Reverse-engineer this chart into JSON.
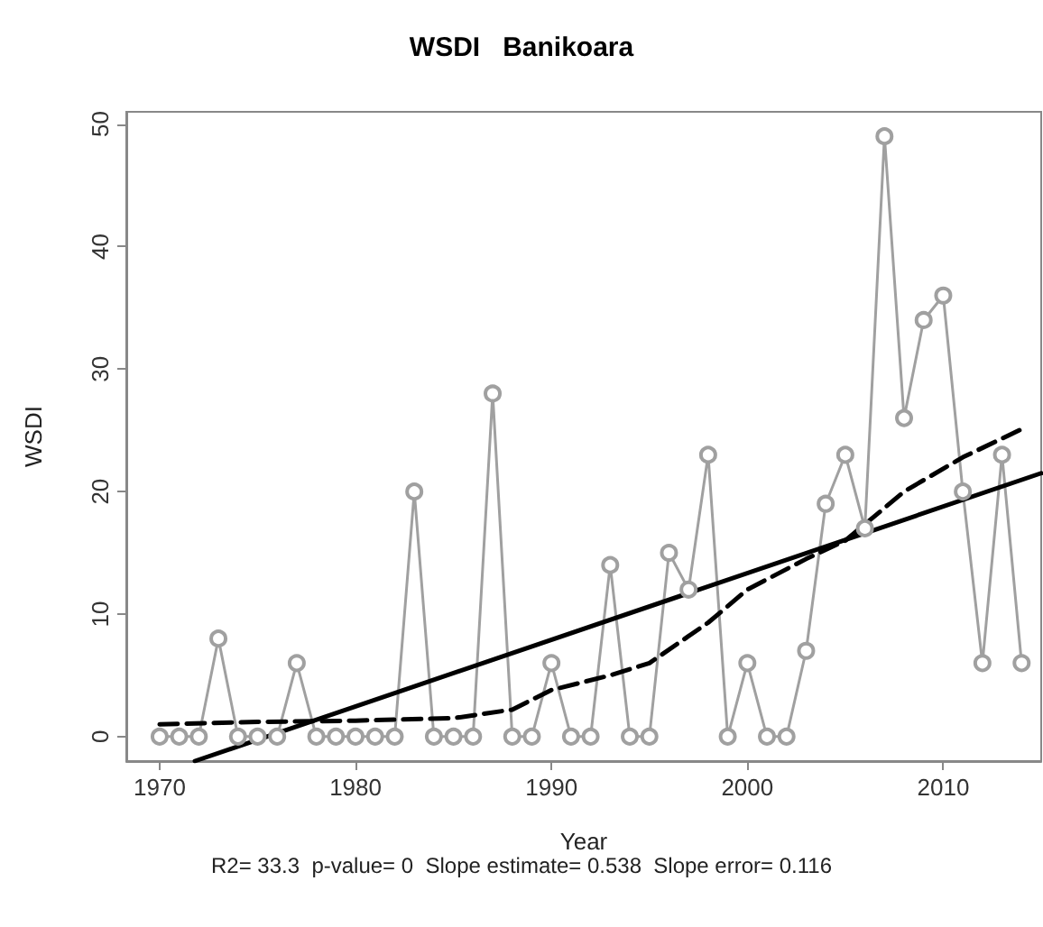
{
  "chart_data": {
    "type": "line",
    "title": "WSDI   Banikoara",
    "xlabel": "Year",
    "ylabel": "WSDI",
    "annotations": [
      "R2= 33.3  p-value= 0  Slope estimate= 0.538  Slope error= 0.116"
    ],
    "x": [
      1970,
      1971,
      1972,
      1973,
      1974,
      1975,
      1976,
      1977,
      1978,
      1979,
      1980,
      1981,
      1982,
      1983,
      1984,
      1985,
      1986,
      1987,
      1988,
      1989,
      1990,
      1991,
      1992,
      1993,
      1994,
      1995,
      1996,
      1997,
      1998,
      1999,
      2000,
      2001,
      2002,
      2003,
      2004,
      2005,
      2006,
      2007,
      2008,
      2009,
      2010,
      2011,
      2012,
      2013,
      2014
    ],
    "series": [
      {
        "color": "#a0a0a0",
        "marker": "circle",
        "line_style": "solid",
        "values": [
          0,
          0,
          0,
          8,
          0,
          0,
          0,
          6,
          0,
          0,
          0,
          0,
          0,
          20,
          0,
          0,
          0,
          28,
          0,
          0,
          6,
          0,
          0,
          14,
          0,
          0,
          15,
          12,
          23,
          0,
          6,
          0,
          0,
          7,
          19,
          23,
          17,
          49,
          26,
          34,
          36,
          20,
          6,
          23,
          6
        ]
      },
      {
        "color": "#000000",
        "marker": "none",
        "line_style": "solid",
        "x": [
          1971.8,
          2015
        ],
        "values": [
          -2,
          21.5
        ]
      },
      {
        "color": "#000000",
        "marker": "none",
        "line_style": "dashed",
        "x": [
          1970,
          1975,
          1980,
          1985,
          1988,
          1990,
          1993,
          1995,
          1998,
          2000,
          2003,
          2005,
          2008,
          2011,
          2014
        ],
        "values": [
          1,
          1.2,
          1.3,
          1.5,
          2.2,
          3.8,
          5,
          6,
          9.3,
          12,
          14.5,
          16,
          20,
          22.8,
          25.1
        ]
      }
    ],
    "xlim": [
      1968.3,
      2015
    ],
    "xticks": [
      1970,
      1980,
      1990,
      2000,
      2010
    ],
    "ylim": [
      -2,
      51
    ],
    "yticks": [
      0,
      10,
      20,
      30,
      40,
      50
    ],
    "grid": false
  }
}
